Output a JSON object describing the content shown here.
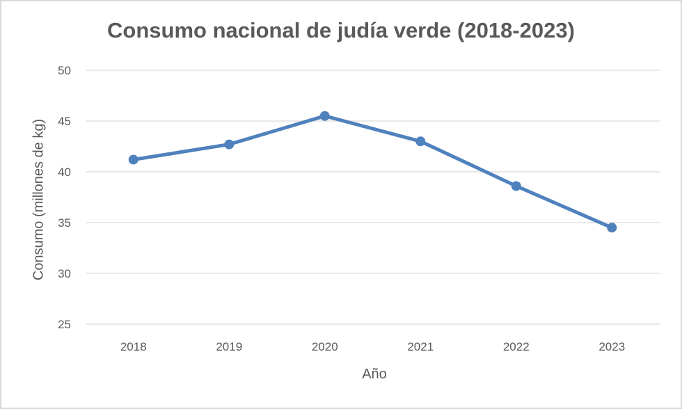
{
  "chart_data": {
    "type": "line",
    "title": "Consumo nacional de judía verde (2018-2023)",
    "xlabel": "Año",
    "ylabel": "Consumo (millones de kg)",
    "categories": [
      "2018",
      "2019",
      "2020",
      "2021",
      "2022",
      "2023"
    ],
    "series": [
      {
        "name": "Consumo",
        "values": [
          41.2,
          42.7,
          45.5,
          43.0,
          38.6,
          34.5
        ],
        "color": "#4f81bd",
        "markers": true
      }
    ],
    "ylim": [
      25,
      50
    ],
    "yticks": [
      25,
      30,
      35,
      40,
      45,
      50
    ],
    "grid": true,
    "legend": "none"
  },
  "colors": {
    "line": "#4f81bd",
    "grid": "#d9d9d9",
    "text": "#595959",
    "border": "#d9d9d9"
  }
}
